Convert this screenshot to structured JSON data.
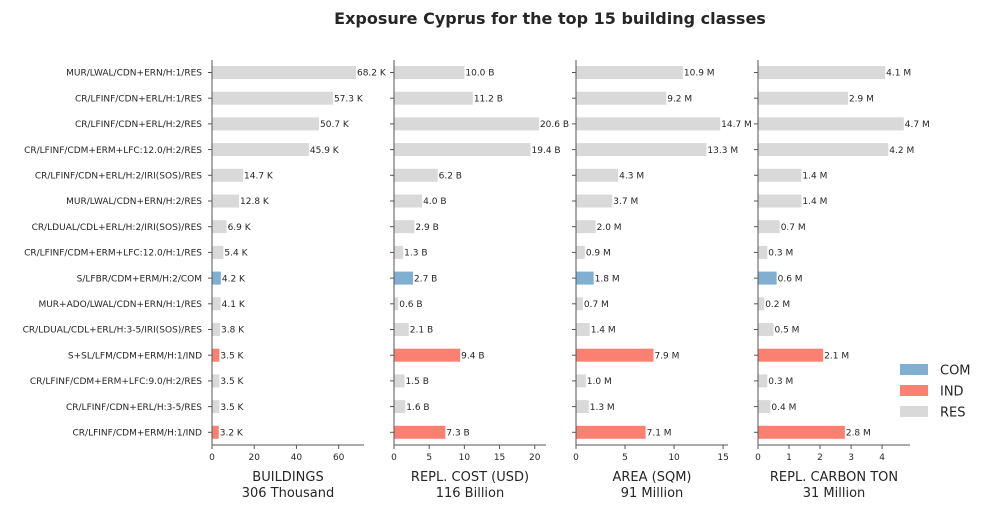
{
  "chart_data": {
    "type": "bar",
    "orientation": "horizontal",
    "title": "Exposure Cyprus for the top 15 building classes",
    "categories": [
      "MUR/LWAL/CDN+ERN/H:1/RES",
      "CR/LFINF/CDN+ERL/H:1/RES",
      "CR/LFINF/CDN+ERL/H:2/RES",
      "CR/LFINF/CDM+ERM+LFC:12.0/H:2/RES",
      "CR/LFINF/CDN+ERL/H:2/IRI(SOS)/RES",
      "MUR/LWAL/CDN+ERN/H:2/RES",
      "CR/LDUAL/CDL+ERL/H:2/IRI(SOS)/RES",
      "CR/LFINF/CDM+ERM+LFC:12.0/H:1/RES",
      "S/LFBR/CDM+ERM/H:2/COM",
      "MUR+ADO/LWAL/CDN+ERN/H:1/RES",
      "CR/LDUAL/CDL+ERL/H:3-5/IRI(SOS)/RES",
      "S+SL/LFM/CDM+ERM/H:1/IND",
      "CR/LFINF/CDM+ERM+LFC:9.0/H:2/RES",
      "CR/LFINF/CDN+ERL/H:3-5/RES",
      "CR/LFINF/CDM+ERM/H:1/IND"
    ],
    "occupancy": [
      "RES",
      "RES",
      "RES",
      "RES",
      "RES",
      "RES",
      "RES",
      "RES",
      "COM",
      "RES",
      "RES",
      "IND",
      "RES",
      "RES",
      "IND"
    ],
    "legend": {
      "placement": "right",
      "entries": [
        {
          "name": "COM",
          "color": "#81afd1"
        },
        {
          "name": "IND",
          "color": "#fa8072"
        },
        {
          "name": "RES",
          "color": "#d9d9d9"
        }
      ]
    },
    "panels": [
      {
        "xlabel": "BUILDINGS",
        "total": "306 Thousand",
        "xlim": [
          0,
          72
        ],
        "ticks": [
          "0",
          "20",
          "40",
          "60"
        ],
        "tick_values": [
          0,
          20,
          40,
          60
        ],
        "values": [
          68.2,
          57.3,
          50.7,
          45.9,
          14.7,
          12.8,
          6.9,
          5.4,
          4.2,
          4.1,
          3.8,
          3.5,
          3.5,
          3.5,
          3.2
        ],
        "labels": [
          "68.2 K",
          "57.3 K",
          "50.7 K",
          "45.9 K",
          "14.7 K",
          "12.8 K",
          "6.9 K",
          "5.4 K",
          "4.2 K",
          "4.1 K",
          "3.8 K",
          "3.5 K",
          "3.5 K",
          "3.5 K",
          "3.2 K"
        ]
      },
      {
        "xlabel": "REPL. COST (USD)",
        "total": "116 Billion",
        "xlim": [
          0,
          21.6
        ],
        "ticks": [
          "0",
          "5",
          "10",
          "15",
          "20"
        ],
        "tick_values": [
          0,
          5,
          10,
          15,
          20
        ],
        "values": [
          10.0,
          11.2,
          20.6,
          19.4,
          6.2,
          4.0,
          2.9,
          1.3,
          2.7,
          0.6,
          2.1,
          9.4,
          1.5,
          1.6,
          7.3
        ],
        "labels": [
          "10.0 B",
          "11.2 B",
          "20.6 B",
          "19.4 B",
          "6.2 B",
          "4.0 B",
          "2.9 B",
          "1.3 B",
          "2.7 B",
          "0.6 B",
          "2.1 B",
          "9.4 B",
          "1.5 B",
          "1.6 B",
          "7.3 B"
        ]
      },
      {
        "xlabel": "AREA (SQM)",
        "total": "91 Million",
        "xlim": [
          0,
          15.5
        ],
        "ticks": [
          "0",
          "5",
          "10",
          "15"
        ],
        "tick_values": [
          0,
          5,
          10,
          15
        ],
        "values": [
          10.9,
          9.2,
          14.7,
          13.3,
          4.3,
          3.7,
          2.0,
          0.9,
          1.8,
          0.7,
          1.4,
          7.9,
          1.0,
          1.3,
          7.1
        ],
        "labels": [
          "10.9 M",
          "9.2 M",
          "14.7 M",
          "13.3 M",
          "4.3 M",
          "3.7 M",
          "2.0 M",
          "0.9 M",
          "1.8 M",
          "0.7 M",
          "1.4 M",
          "7.9 M",
          "1.0 M",
          "1.3 M",
          "7.1 M"
        ]
      },
      {
        "xlabel": "REPL. CARBON TON",
        "total": "31 Million",
        "xlim": [
          0,
          4.9
        ],
        "ticks": [
          "0",
          "1",
          "2",
          "3",
          "4"
        ],
        "tick_values": [
          0,
          1,
          2,
          3,
          4
        ],
        "values": [
          4.1,
          2.9,
          4.7,
          4.2,
          1.4,
          1.4,
          0.7,
          0.3,
          0.6,
          0.2,
          0.5,
          2.1,
          0.3,
          0.4,
          2.8
        ],
        "labels": [
          "4.1 M",
          "2.9 M",
          "4.7 M",
          "4.2 M",
          "1.4 M",
          "1.4 M",
          "0.7 M",
          "0.3 M",
          "0.6 M",
          "0.2 M",
          "0.5 M",
          "2.1 M",
          "0.3 M",
          "0.4 M",
          "2.8 M"
        ]
      }
    ]
  }
}
